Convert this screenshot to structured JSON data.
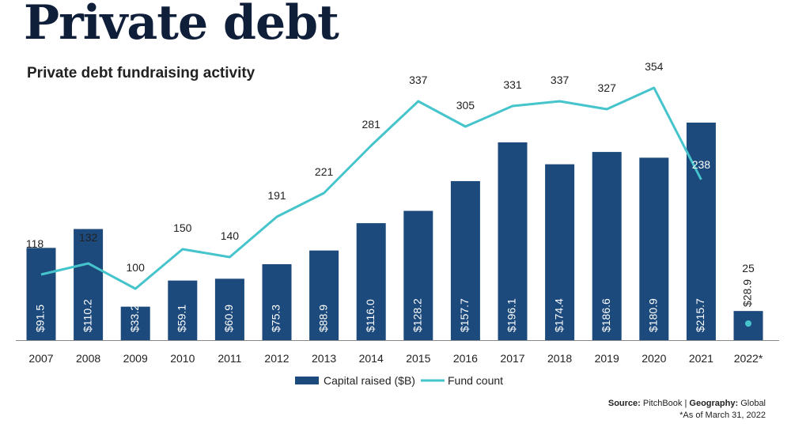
{
  "headline": "Private debt",
  "subtitle": "Private debt fundraising activity",
  "chart_data": {
    "type": "bar",
    "categories": [
      "2007",
      "2008",
      "2009",
      "2010",
      "2011",
      "2012",
      "2013",
      "2014",
      "2015",
      "2016",
      "2017",
      "2018",
      "2019",
      "2020",
      "2021",
      "2022*"
    ],
    "series": [
      {
        "name": "Capital raised ($B)",
        "type": "bar",
        "values": [
          91.5,
          110.2,
          33.2,
          59.1,
          60.9,
          75.3,
          88.9,
          116.0,
          128.2,
          157.7,
          196.1,
          174.4,
          186.6,
          180.9,
          215.7,
          28.9
        ],
        "labels": [
          "$91.5",
          "$110.2",
          "$33.2",
          "$59.1",
          "$60.9",
          "$75.3",
          "$88.9",
          "$116.0",
          "$128.2",
          "$157.7",
          "$196.1",
          "$174.4",
          "$186.6",
          "$180.9",
          "$215.7",
          "$28.9"
        ]
      },
      {
        "name": "Fund count",
        "type": "line",
        "values": [
          118,
          132,
          100,
          150,
          140,
          191,
          221,
          281,
          337,
          305,
          331,
          337,
          327,
          354,
          238,
          25
        ],
        "labels": [
          "118",
          "132",
          "100",
          "150",
          "140",
          "191",
          "221",
          "281",
          "337",
          "305",
          "331",
          "337",
          "327",
          "354",
          "238",
          "25"
        ]
      }
    ],
    "legend": [
      "Capital raised ($B)",
      "Fund count"
    ],
    "ylim_bars": [
      0,
      250
    ],
    "ylim_line": [
      0,
      400
    ]
  },
  "colors": {
    "bar": "#1c4a7c",
    "line": "#45c4cc",
    "axis": "#888888"
  },
  "source": {
    "label": "Source:",
    "value": "PitchBook",
    "sep": "|",
    "geo_label": "Geography:",
    "geo_value": "Global",
    "note": "*As of March 31, 2022"
  }
}
